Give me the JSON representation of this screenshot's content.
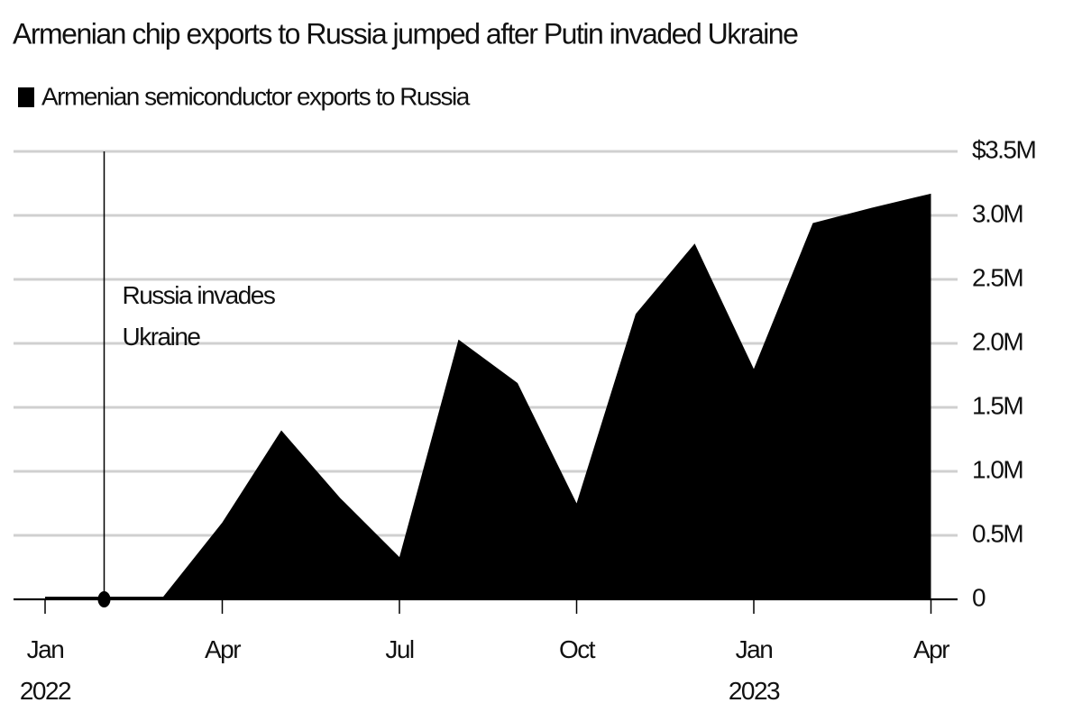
{
  "chart_data": {
    "type": "area",
    "title": "Armenian chip exports to Russia jumped after Putin invaded Ukraine",
    "categories": [
      "Jan\n2022",
      null,
      null,
      "Apr",
      null,
      null,
      "Jul",
      null,
      null,
      "Oct",
      null,
      null,
      "Jan\n2023",
      null,
      null,
      "Apr"
    ],
    "series": [
      {
        "name": "Armenian semiconductor exports to Russia",
        "color": "#000000",
        "values": [
          0.02,
          0.02,
          0.02,
          0.6,
          1.32,
          0.79,
          0.33,
          2.03,
          1.69,
          0.75,
          2.23,
          2.78,
          1.8,
          2.94,
          3.06,
          3.17
        ]
      }
    ],
    "ylim": [
      0,
      3.5
    ],
    "yticks": [
      {
        "value": 0,
        "label": "0"
      },
      {
        "value": 0.5,
        "label": "0.5M"
      },
      {
        "value": 1,
        "label": "1.0M"
      },
      {
        "value": 1.5,
        "label": "1.5M"
      },
      {
        "value": 2,
        "label": "2.0M"
      },
      {
        "value": 2.5,
        "label": "2.5M"
      },
      {
        "value": 3,
        "label": "3.0M"
      },
      {
        "value": 3.5,
        "label": "$3.5M"
      }
    ],
    "grid": true,
    "annotation": "Russia invades\nUkraine"
  }
}
